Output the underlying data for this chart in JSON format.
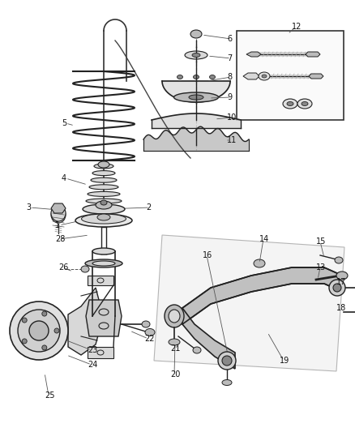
{
  "bg_color": "#ffffff",
  "line_color": "#2a2a2a",
  "fig_width": 4.38,
  "fig_height": 5.33,
  "dpi": 100,
  "label_font_size": 7.0,
  "leader_color": "#555555",
  "part_edge_color": "#222222",
  "part_face_light": "#d8d8d8",
  "part_face_mid": "#bbbbbb",
  "part_face_dark": "#888888"
}
